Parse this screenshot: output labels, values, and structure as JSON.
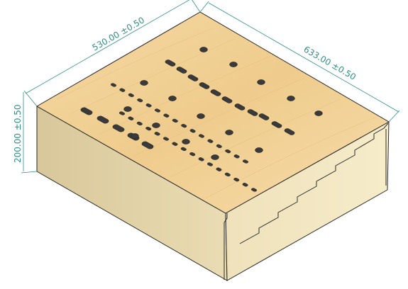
{
  "dimensions": {
    "width_label": "530.00 ±0.50",
    "depth_label": "633.00 ±0.50",
    "height_label": "200.00 ±0.50"
  },
  "colors": {
    "dimension_line": "#2f8f86",
    "wood_top": "#f1cf94",
    "wood_front": "#e7d8ae",
    "wood_right": "#f2e6c0",
    "edge": "#2a2a2a",
    "hole": "#3a3a3a"
  }
}
